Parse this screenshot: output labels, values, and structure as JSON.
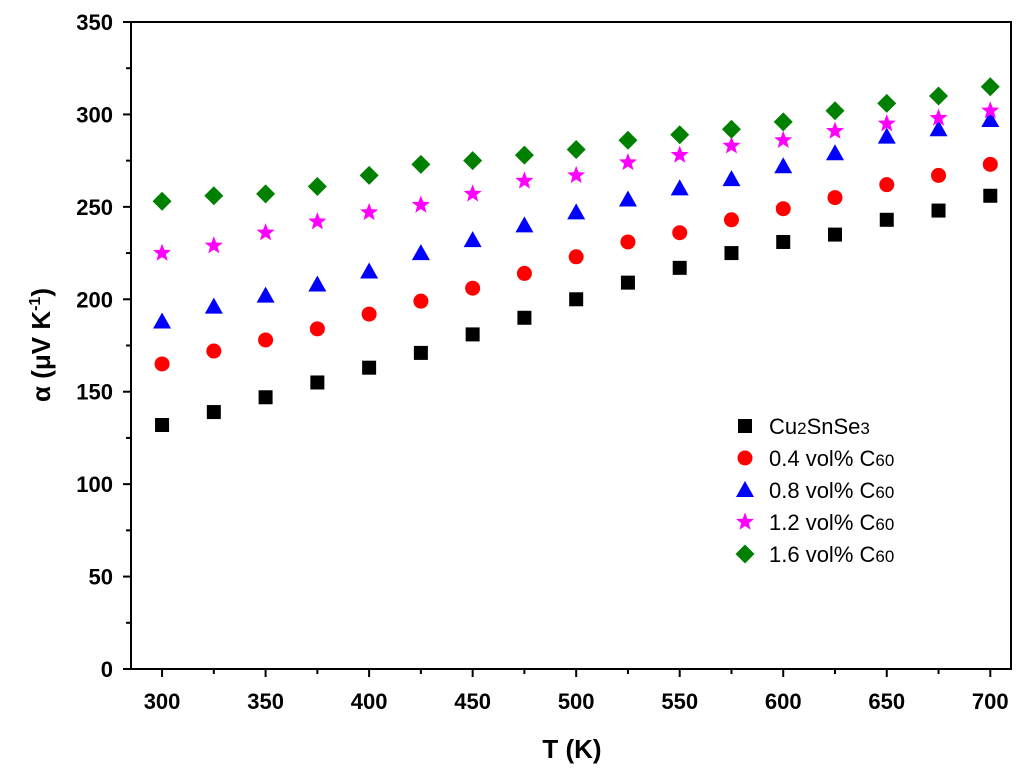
{
  "chart_data": {
    "type": "scatter",
    "title": "",
    "xlabel": "T (K)",
    "ylabel": "α (μV K⁻¹)",
    "ylabel_parts": {
      "main": "α (μV K",
      "sup": "-1",
      "close": ")"
    },
    "xlim": [
      285,
      710
    ],
    "ylim": [
      0,
      350
    ],
    "x_ticks": [
      300,
      350,
      400,
      450,
      500,
      550,
      600,
      650,
      700
    ],
    "y_ticks": [
      0,
      50,
      100,
      150,
      200,
      250,
      300,
      350
    ],
    "legend_position": "bottom-right",
    "x": [
      300,
      325,
      350,
      375,
      400,
      425,
      450,
      475,
      500,
      525,
      550,
      575,
      600,
      625,
      650,
      675,
      700
    ],
    "series": [
      {
        "name": "Cu2SnSe3",
        "label_parts": [
          {
            "t": "Cu"
          },
          {
            "t": "2",
            "sub": true
          },
          {
            "t": "SnSe"
          },
          {
            "t": "3",
            "sub": true
          }
        ],
        "marker": "square",
        "color": "#000000",
        "values": [
          132,
          139,
          147,
          155,
          163,
          171,
          181,
          190,
          200,
          209,
          217,
          225,
          231,
          235,
          243,
          248,
          256
        ]
      },
      {
        "name": "0.4 vol% C60",
        "label_parts": [
          {
            "t": "0.4 vol% C"
          },
          {
            "t": "60",
            "sub": true
          }
        ],
        "marker": "circle",
        "color": "#ff0000",
        "values": [
          165,
          172,
          178,
          184,
          192,
          199,
          206,
          214,
          223,
          231,
          236,
          243,
          249,
          255,
          262,
          267,
          273
        ]
      },
      {
        "name": "0.8 vol% C60",
        "label_parts": [
          {
            "t": "0.8 vol% C"
          },
          {
            "t": "60",
            "sub": true
          }
        ],
        "marker": "triangle",
        "color": "#0000ff",
        "values": [
          188,
          196,
          202,
          208,
          215,
          225,
          232,
          240,
          247,
          254,
          260,
          265,
          272,
          279,
          288,
          292,
          297
        ]
      },
      {
        "name": "1.2 vol% C60",
        "label_parts": [
          {
            "t": "1.2 vol% C"
          },
          {
            "t": "60",
            "sub": true
          }
        ],
        "marker": "star",
        "color": "#ff00ff",
        "values": [
          225,
          229,
          236,
          242,
          247,
          251,
          257,
          264,
          267,
          274,
          278,
          283,
          286,
          291,
          295,
          298,
          302
        ]
      },
      {
        "name": "1.6 vol% C60",
        "label_parts": [
          {
            "t": "1.6 vol% C"
          },
          {
            "t": "60",
            "sub": true
          }
        ],
        "marker": "diamond",
        "color": "#008000",
        "values": [
          253,
          256,
          257,
          261,
          267,
          273,
          275,
          278,
          281,
          286,
          289,
          292,
          296,
          302,
          306,
          310,
          315
        ]
      }
    ]
  }
}
